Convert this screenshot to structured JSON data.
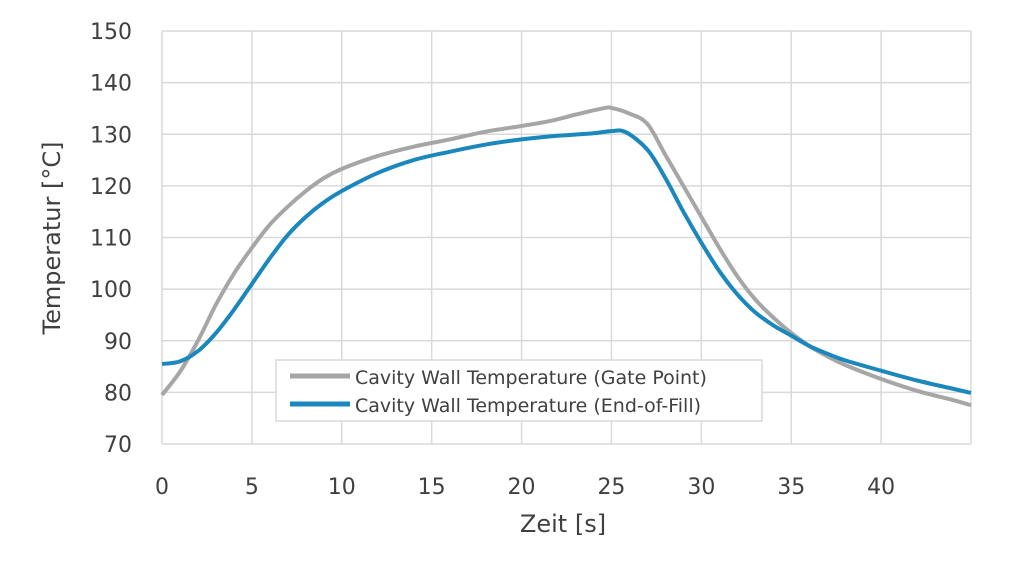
{
  "chart_data": {
    "type": "line",
    "title": "",
    "xlabel": "Zeit [s]",
    "ylabel": "Temperatur [°C]",
    "xlim": [
      0,
      45
    ],
    "ylim": [
      70,
      150
    ],
    "xticks": [
      0,
      5,
      10,
      15,
      20,
      25,
      30,
      35,
      40
    ],
    "yticks": [
      70,
      80,
      90,
      100,
      110,
      120,
      130,
      140,
      150
    ],
    "grid": true,
    "legend_position": "bottom-center-inside",
    "series": [
      {
        "name": "Cavity Wall Temperature (Gate Point)",
        "color": "#a6a6a6",
        "x": [
          0,
          1,
          2,
          3,
          4,
          5,
          6,
          7,
          8,
          9,
          10,
          12,
          14,
          16,
          18,
          20,
          21.5,
          23,
          24.5,
          25,
          26,
          27,
          28,
          29,
          30,
          31,
          32,
          33,
          34,
          35,
          36,
          37,
          38,
          40,
          42,
          44,
          45
        ],
        "y": [
          79.5,
          84,
          90,
          97,
          103,
          108,
          112.5,
          116,
          119,
          121.5,
          123.3,
          125.8,
          127.6,
          129,
          130.5,
          131.6,
          132.5,
          133.8,
          135,
          135.1,
          134,
          132,
          126,
          120,
          114,
          108,
          102.5,
          98,
          94.5,
          91.5,
          89,
          87,
          85.3,
          82.6,
          80.3,
          78.5,
          77.5
        ]
      },
      {
        "name": "Cavity Wall Temperature (End-of-Fill)",
        "color": "#1a87bd",
        "x": [
          0,
          1,
          2,
          3,
          4,
          5,
          6,
          7,
          8,
          9,
          10,
          12,
          14,
          16,
          18,
          20,
          22,
          24,
          25,
          25.8,
          27,
          28,
          29,
          30,
          31,
          32,
          33,
          34,
          35,
          36,
          37,
          38,
          40,
          42,
          44,
          45
        ],
        "y": [
          85.5,
          86,
          88,
          91.5,
          96,
          101,
          106,
          110.5,
          114,
          116.8,
          119,
          122.5,
          125,
          126.6,
          128,
          129,
          129.7,
          130.2,
          130.6,
          130.4,
          127,
          121.5,
          115,
          109,
          103.5,
          99,
          95.5,
          93,
          91,
          89,
          87.5,
          86.2,
          84.2,
          82.3,
          80.7,
          79.9
        ]
      }
    ]
  }
}
